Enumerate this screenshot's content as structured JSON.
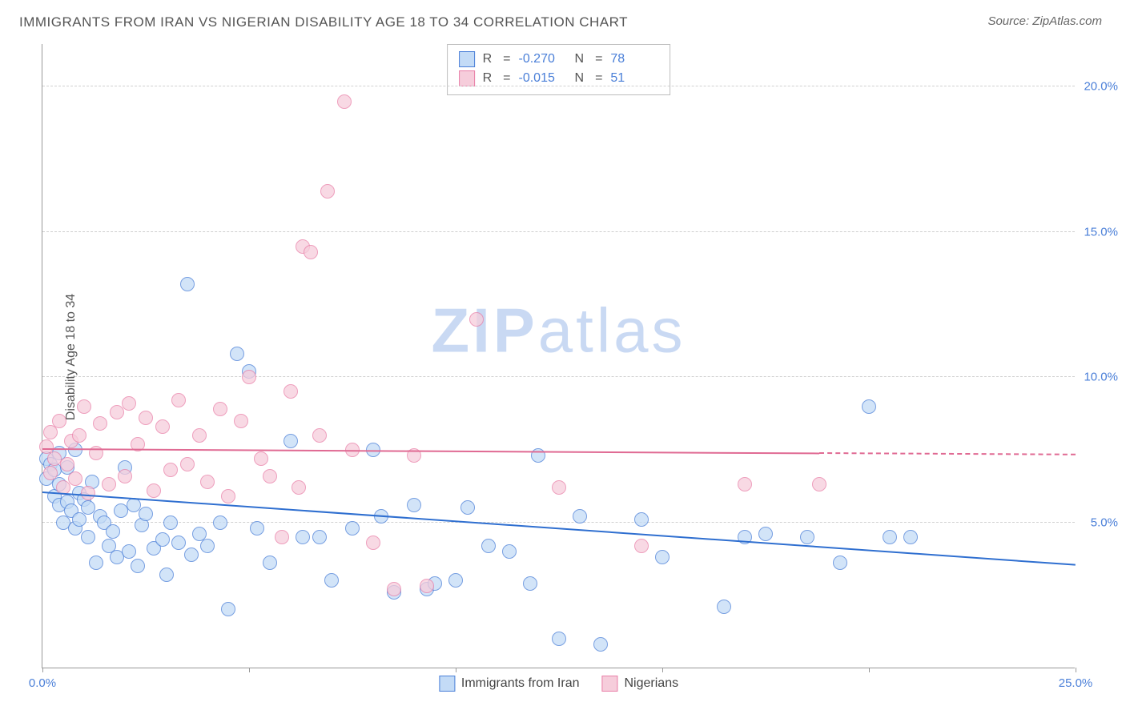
{
  "title": "IMMIGRANTS FROM IRAN VS NIGERIAN DISABILITY AGE 18 TO 34 CORRELATION CHART",
  "source": "Source: ZipAtlas.com",
  "ylabel": "Disability Age 18 to 34",
  "watermark_bold": "ZIP",
  "watermark_rest": "atlas",
  "chart": {
    "type": "scatter",
    "xlim": [
      0,
      25
    ],
    "ylim": [
      0,
      21.5
    ],
    "x_ticks": [
      0,
      5,
      10,
      15,
      20,
      25
    ],
    "x_tick_labels": {
      "0": "0.0%",
      "25": "25.0%"
    },
    "y_gridlines": [
      5,
      10,
      15,
      20
    ],
    "y_tick_labels": {
      "5": "5.0%",
      "10": "10.0%",
      "15": "15.0%",
      "20": "20.0%"
    },
    "background_color": "#ffffff",
    "grid_color": "#d0d0d0",
    "axis_color": "#999999",
    "tick_label_color": "#4a7fd8",
    "marker_radius": 9,
    "marker_border_width": 1.2,
    "series": [
      {
        "name": "Immigrants from Iran",
        "fill": "#c3dbf6",
        "stroke": "#4a7fd8",
        "fill_opacity": 0.75,
        "R": "-0.270",
        "N": "78",
        "trend": {
          "x0": 0,
          "y0": 6.0,
          "x1": 25,
          "y1": 3.5,
          "color": "#2f6fd0",
          "dash_from_x": null
        },
        "points": [
          [
            0.1,
            7.2
          ],
          [
            0.1,
            6.5
          ],
          [
            0.2,
            7.0
          ],
          [
            0.3,
            5.9
          ],
          [
            0.3,
            6.8
          ],
          [
            0.4,
            5.6
          ],
          [
            0.4,
            6.3
          ],
          [
            0.4,
            7.4
          ],
          [
            0.5,
            5.0
          ],
          [
            0.6,
            6.9
          ],
          [
            0.6,
            5.7
          ],
          [
            0.7,
            5.4
          ],
          [
            0.8,
            7.5
          ],
          [
            0.8,
            4.8
          ],
          [
            0.9,
            5.1
          ],
          [
            0.9,
            6.0
          ],
          [
            1.0,
            5.8
          ],
          [
            1.1,
            4.5
          ],
          [
            1.1,
            5.5
          ],
          [
            1.2,
            6.4
          ],
          [
            1.3,
            3.6
          ],
          [
            1.4,
            5.2
          ],
          [
            1.5,
            5.0
          ],
          [
            1.6,
            4.2
          ],
          [
            1.7,
            4.7
          ],
          [
            1.8,
            3.8
          ],
          [
            1.9,
            5.4
          ],
          [
            2.0,
            6.9
          ],
          [
            2.1,
            4.0
          ],
          [
            2.2,
            5.6
          ],
          [
            2.3,
            3.5
          ],
          [
            2.4,
            4.9
          ],
          [
            2.5,
            5.3
          ],
          [
            2.7,
            4.1
          ],
          [
            2.9,
            4.4
          ],
          [
            3.0,
            3.2
          ],
          [
            3.1,
            5.0
          ],
          [
            3.3,
            4.3
          ],
          [
            3.5,
            13.2
          ],
          [
            3.6,
            3.9
          ],
          [
            3.8,
            4.6
          ],
          [
            4.0,
            4.2
          ],
          [
            4.3,
            5.0
          ],
          [
            4.5,
            2.0
          ],
          [
            4.7,
            10.8
          ],
          [
            5.0,
            10.2
          ],
          [
            5.2,
            4.8
          ],
          [
            5.5,
            3.6
          ],
          [
            6.0,
            7.8
          ],
          [
            6.3,
            4.5
          ],
          [
            6.7,
            4.5
          ],
          [
            7.0,
            3.0
          ],
          [
            7.5,
            4.8
          ],
          [
            8.0,
            7.5
          ],
          [
            8.2,
            5.2
          ],
          [
            8.5,
            2.6
          ],
          [
            9.0,
            5.6
          ],
          [
            9.3,
            2.7
          ],
          [
            9.5,
            2.9
          ],
          [
            10.0,
            3.0
          ],
          [
            10.3,
            5.5
          ],
          [
            10.8,
            4.2
          ],
          [
            11.3,
            4.0
          ],
          [
            11.8,
            2.9
          ],
          [
            12.0,
            7.3
          ],
          [
            12.5,
            1.0
          ],
          [
            13.0,
            5.2
          ],
          [
            13.5,
            0.8
          ],
          [
            14.5,
            5.1
          ],
          [
            15.0,
            3.8
          ],
          [
            16.5,
            2.1
          ],
          [
            17.0,
            4.5
          ],
          [
            17.5,
            4.6
          ],
          [
            18.5,
            4.5
          ],
          [
            19.3,
            3.6
          ],
          [
            20.0,
            9.0
          ],
          [
            20.5,
            4.5
          ],
          [
            21.0,
            4.5
          ]
        ]
      },
      {
        "name": "Nigerians",
        "fill": "#f6cddb",
        "stroke": "#e97fa8",
        "fill_opacity": 0.75,
        "R": "-0.015",
        "N": "51",
        "trend": {
          "x0": 0,
          "y0": 7.5,
          "x1": 25,
          "y1": 7.3,
          "color": "#e06a93",
          "dash_from_x": 18.8
        },
        "points": [
          [
            0.1,
            7.6
          ],
          [
            0.2,
            8.1
          ],
          [
            0.2,
            6.7
          ],
          [
            0.3,
            7.2
          ],
          [
            0.4,
            8.5
          ],
          [
            0.5,
            6.2
          ],
          [
            0.6,
            7.0
          ],
          [
            0.7,
            7.8
          ],
          [
            0.8,
            6.5
          ],
          [
            0.9,
            8.0
          ],
          [
            1.0,
            9.0
          ],
          [
            1.1,
            6.0
          ],
          [
            1.3,
            7.4
          ],
          [
            1.4,
            8.4
          ],
          [
            1.6,
            6.3
          ],
          [
            1.8,
            8.8
          ],
          [
            2.0,
            6.6
          ],
          [
            2.1,
            9.1
          ],
          [
            2.3,
            7.7
          ],
          [
            2.5,
            8.6
          ],
          [
            2.7,
            6.1
          ],
          [
            2.9,
            8.3
          ],
          [
            3.1,
            6.8
          ],
          [
            3.3,
            9.2
          ],
          [
            3.5,
            7.0
          ],
          [
            3.8,
            8.0
          ],
          [
            4.0,
            6.4
          ],
          [
            4.3,
            8.9
          ],
          [
            4.5,
            5.9
          ],
          [
            4.8,
            8.5
          ],
          [
            5.0,
            10.0
          ],
          [
            5.3,
            7.2
          ],
          [
            5.5,
            6.6
          ],
          [
            5.8,
            4.5
          ],
          [
            6.0,
            9.5
          ],
          [
            6.2,
            6.2
          ],
          [
            6.3,
            14.5
          ],
          [
            6.5,
            14.3
          ],
          [
            6.7,
            8.0
          ],
          [
            6.9,
            16.4
          ],
          [
            7.3,
            19.5
          ],
          [
            7.5,
            7.5
          ],
          [
            8.0,
            4.3
          ],
          [
            8.5,
            2.7
          ],
          [
            9.0,
            7.3
          ],
          [
            9.3,
            2.8
          ],
          [
            10.5,
            12.0
          ],
          [
            12.5,
            6.2
          ],
          [
            14.5,
            4.2
          ],
          [
            17.0,
            6.3
          ],
          [
            18.8,
            6.3
          ]
        ]
      }
    ]
  },
  "legend_top": {
    "label_R": "R",
    "label_N": "N",
    "eq": "="
  },
  "legend_bottom_labels": [
    "Immigrants from Iran",
    "Nigerians"
  ]
}
